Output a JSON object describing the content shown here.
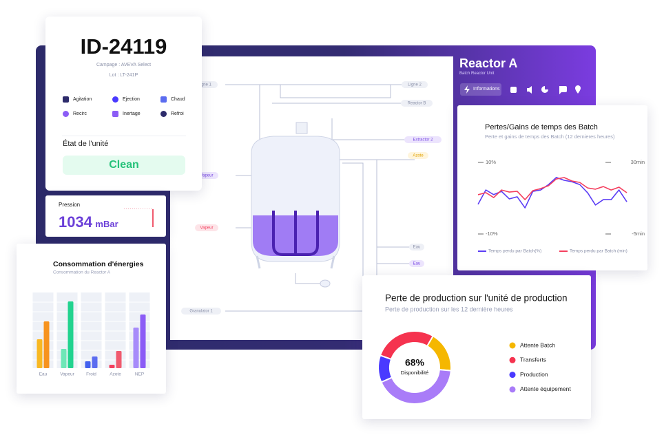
{
  "id_card": {
    "title": "ID-24119",
    "campaign": "Campage : AVEVA Select",
    "lot": "Lot : LT-241P",
    "actions": [
      "Agitation",
      "Ejection",
      "Chaud",
      "Recirc",
      "Inertage",
      "Refroi"
    ],
    "state_label": "État de l'unité",
    "state": "Clean"
  },
  "pressure": {
    "label": "Pression",
    "value": 1034,
    "unit": "mBar"
  },
  "reactor": {
    "title": "Reactor A",
    "subtitle": "Batch Reactor Unit",
    "tab": "Informations"
  },
  "diagram": {
    "labels": [
      "Ligne 1",
      "Ligne 2",
      "Reactor B",
      "Extractor 2",
      "Azote",
      "Vapeur",
      "Vapeur",
      "Eau",
      "Eau",
      "Granulator 1"
    ]
  },
  "chart_data": [
    {
      "type": "bar",
      "title": "Consommation d'énergies",
      "subtitle": "Consommation du Reactor A",
      "categories": [
        "Eau",
        "Vapeur",
        "Froid",
        "Azote",
        "NEP"
      ],
      "ylim": [
        0,
        110
      ],
      "series": [
        {
          "colors": [
            "#f8b822",
            "#6ee7b7",
            "#4361ee",
            "#f43f5e",
            "#a78bfa"
          ],
          "values": [
            42,
            28,
            10,
            5,
            59
          ]
        },
        {
          "colors": [
            "#f7931e",
            "#22d38f",
            "#5b6cf0",
            "#f05a6e",
            "#8b5cf6"
          ],
          "values": [
            68,
            97,
            17,
            25,
            78
          ]
        }
      ]
    },
    {
      "type": "line",
      "title": "Pertes/Gains de temps des Batch",
      "subtitle": "Perte et gains de temps des Batch (12 dernieres heures)",
      "ylim": [
        -10,
        10
      ],
      "yticks": [
        {
          "value": 10,
          "label": "10%"
        },
        {
          "value": -10,
          "label": "-10%"
        }
      ],
      "y2lim": [
        -5,
        30
      ],
      "y2ticks": [
        {
          "value": 30,
          "label": "30min"
        },
        {
          "value": -5,
          "label": "-5min"
        }
      ],
      "series": [
        {
          "name": "Temps perdu par Batch(%)",
          "color": "#5b3df5",
          "values": [
            -1.7,
            2.3,
            1.0,
            1.9,
            -0.2,
            0.4,
            -2.7,
            1.9,
            2.3,
            3.8,
            5.8,
            5.0,
            4.6,
            3.8,
            1.5,
            -1.9,
            -0.4,
            -0.4,
            2.3,
            -1.0
          ]
        },
        {
          "name": "Temps perdu par Batch (min)",
          "color": "#f43f5e",
          "axis": "y2",
          "values": [
            14.2,
            15.2,
            12.8,
            16.5,
            15.5,
            15.9,
            11.8,
            16.2,
            17.2,
            18.6,
            21.9,
            22.6,
            20.9,
            20.2,
            17.5,
            16.9,
            18.2,
            16.5,
            17.9,
            15.2
          ]
        }
      ]
    },
    {
      "type": "pie",
      "title": "Perte de production sur l'unité de production",
      "subtitle": "Perte de production sur les 12 dernière heures",
      "center_text": "68%",
      "center_label": "Disponibilité",
      "categories": [
        "Attente Batch",
        "Transferts",
        "Production",
        "Attente équipement"
      ],
      "values": [
        18,
        28,
        12,
        42
      ],
      "colors": [
        "#f5b700",
        "#f5334f",
        "#4a3aff",
        "#a97cf8"
      ]
    }
  ]
}
